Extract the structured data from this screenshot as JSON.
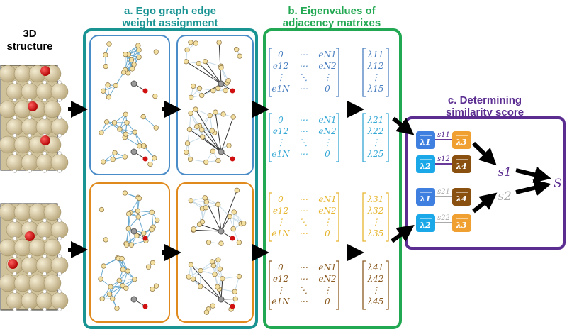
{
  "structure_label": [
    "3D",
    "structure"
  ],
  "sections": {
    "a": {
      "title": [
        "a. Ego graph edge",
        "weight assignment"
      ],
      "color": "#1a9393"
    },
    "b": {
      "title": [
        "b. Eigenvalues of",
        "adjacency matrixes"
      ],
      "color": "#22a852"
    },
    "c": {
      "title": [
        "c. Determining",
        "similarity score"
      ],
      "color": "#5b2d91"
    }
  },
  "matrices": [
    {
      "color": "#4a7fc0",
      "cells": [
        "0",
        "⋯",
        "eN1",
        "e12",
        "⋯",
        "eN2",
        "⋮",
        "⋱",
        "⋮",
        "e1N",
        "⋯",
        "0"
      ],
      "eigen": [
        "λ11",
        "λ12",
        "⋮",
        "λ15"
      ]
    },
    {
      "color": "#35a8d6",
      "cells": [
        "0",
        "⋯",
        "eN1",
        "e12",
        "⋯",
        "eN2",
        "⋮",
        "⋱",
        "⋮",
        "e1N",
        "⋯",
        "0"
      ],
      "eigen": [
        "λ21",
        "λ22",
        "⋮",
        "λ25"
      ]
    },
    {
      "color": "#e6b52e",
      "cells": [
        "0",
        "⋯",
        "eN1",
        "e12",
        "⋯",
        "eN2",
        "⋮",
        "⋱",
        "⋮",
        "e1N",
        "⋯",
        "0"
      ],
      "eigen": [
        "λ31",
        "λ32",
        "⋮",
        "λ35"
      ]
    },
    {
      "color": "#8a5a20",
      "cells": [
        "0",
        "⋯",
        "eN1",
        "e12",
        "⋯",
        "eN2",
        "⋮",
        "⋱",
        "⋮",
        "e1N",
        "⋯",
        "0"
      ],
      "eigen": [
        "λ41",
        "λ42",
        "⋮",
        "λ45"
      ]
    }
  ],
  "similarity": {
    "pairs": [
      {
        "left": "λ1",
        "right": "λ3",
        "score": "s11",
        "left_color": "#3f7fe0",
        "right_color": "#f0a030",
        "line_color": "#6a3a9a"
      },
      {
        "left": "λ2",
        "right": "λ4",
        "score": "s12",
        "left_color": "#1aa8e8",
        "right_color": "#8a5010",
        "line_color": "#6a3a9a"
      },
      {
        "left": "λ1",
        "right": "λ4",
        "score": "s21",
        "left_color": "#3f7fe0",
        "right_color": "#8a5010",
        "line_color": "#aaaaaa"
      },
      {
        "left": "λ2",
        "right": "λ3",
        "score": "s22",
        "left_color": "#1aa8e8",
        "right_color": "#f0a030",
        "line_color": "#aaaaaa"
      }
    ],
    "s1": "s1",
    "s2": "s2",
    "final": "S"
  },
  "graph_panel_colors": {
    "top": "#4a8cc8",
    "bottom": "#e08a1e"
  }
}
